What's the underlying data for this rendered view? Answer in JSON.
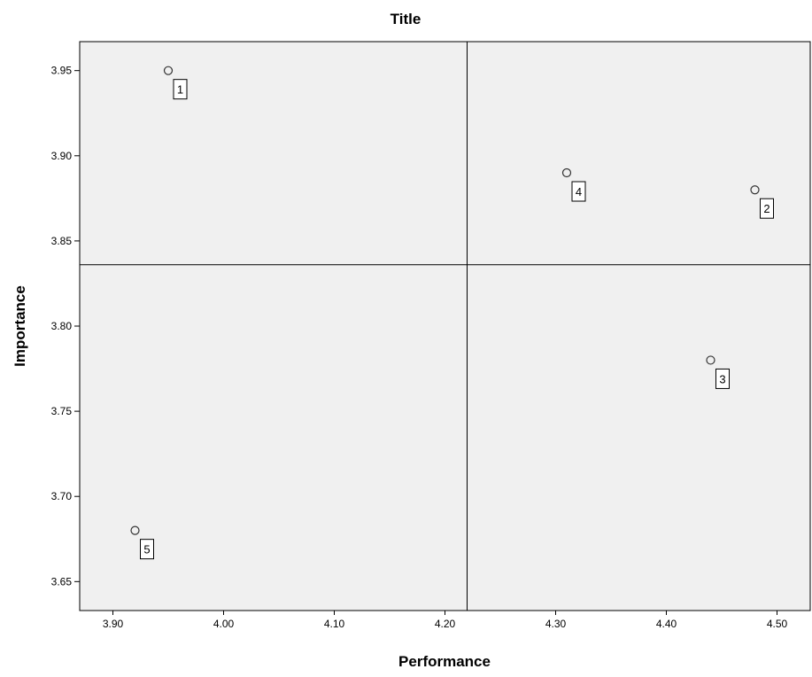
{
  "chart_data": {
    "type": "scatter",
    "title": "Title",
    "xlabel": "Performance",
    "ylabel": "Importance",
    "xlim": [
      3.87,
      4.53
    ],
    "ylim": [
      3.633,
      3.967
    ],
    "x_ticks": [
      "3.90",
      "4.00",
      "4.10",
      "4.20",
      "4.30",
      "4.40",
      "4.50"
    ],
    "y_ticks": [
      "3.65",
      "3.70",
      "3.75",
      "3.80",
      "3.85",
      "3.90",
      "3.95"
    ],
    "reference_lines": {
      "x": 4.22,
      "y": 3.836
    },
    "grid": false,
    "background_color": "#f0f0f0",
    "points": [
      {
        "label": "1",
        "x": 3.95,
        "y": 3.95
      },
      {
        "label": "2",
        "x": 4.48,
        "y": 3.88
      },
      {
        "label": "3",
        "x": 4.44,
        "y": 3.78
      },
      {
        "label": "4",
        "x": 4.31,
        "y": 3.89
      },
      {
        "label": "5",
        "x": 3.92,
        "y": 3.68
      }
    ]
  }
}
